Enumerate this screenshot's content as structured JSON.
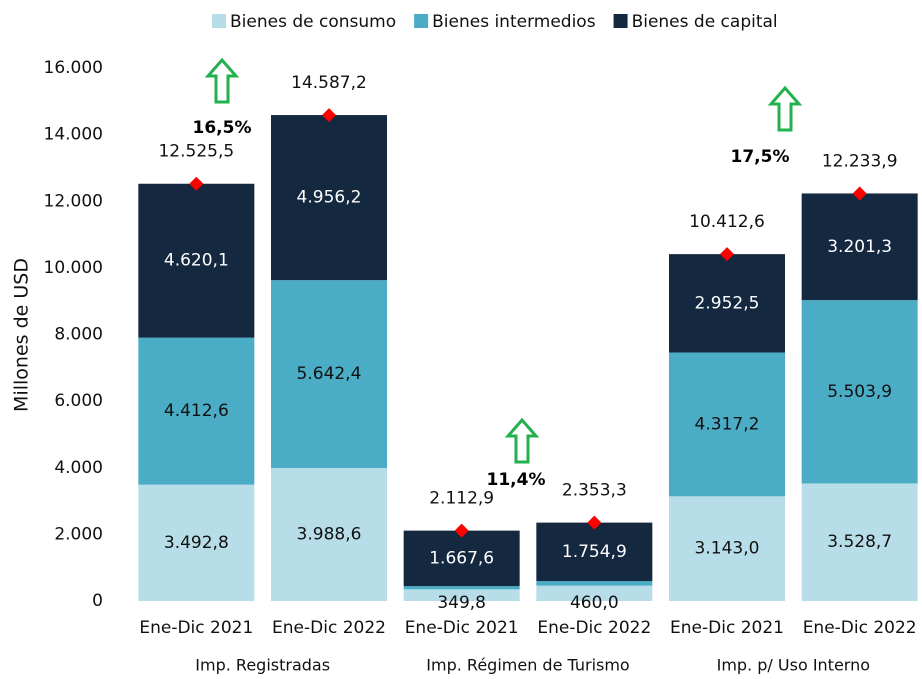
{
  "chart_data": {
    "type": "bar",
    "stacked": true,
    "ylabel": "Millones de USD",
    "categories": [
      "Ene-Dic 2021",
      "Ene-Dic 2022",
      "Ene-Dic 2021",
      "Ene-Dic 2022",
      "Ene-Dic 2021",
      "Ene-Dic 2022"
    ],
    "groups": [
      "Imp. Registradas",
      "Imp. Régimen de Turismo",
      "Imp. p/ Uso Interno"
    ],
    "series": [
      {
        "name": "Bienes de consumo",
        "color": "#b7dde8",
        "values": [
          3492.8,
          3988.6,
          349.8,
          460.0,
          3143.0,
          3528.7
        ],
        "value_labels": [
          "3.492,8",
          "3.988,6",
          "349,8",
          "460,0",
          "3.143,0",
          "3.528,7"
        ]
      },
      {
        "name": "Bienes intermedios",
        "color": "#4bacc6",
        "values": [
          4412.6,
          5642.4,
          95.5,
          138.4,
          4317.2,
          5503.9
        ],
        "value_labels": [
          "4.412,6",
          "5.642,4",
          null,
          null,
          "4.317,2",
          "5.503,9"
        ]
      },
      {
        "name": "Bienes de capital",
        "color": "#142840",
        "values": [
          4620.1,
          4956.2,
          1667.6,
          1754.9,
          2952.5,
          3201.3
        ],
        "value_labels": [
          "4.620,1",
          "4.956,2",
          "1.667,6",
          "1.754,9",
          "2.952,5",
          "3.201,3"
        ]
      }
    ],
    "totals": {
      "color": "#ff0000",
      "values": [
        12525.5,
        14587.2,
        2112.9,
        2353.3,
        10412.6,
        12233.9
      ],
      "value_labels": [
        "12.525,5",
        "14.587,2",
        "2.112,9",
        "2.353,3",
        "10.412,6",
        "12.233,9"
      ]
    },
    "annotations": [
      {
        "text": "16,5%"
      },
      {
        "text": "11,4%"
      },
      {
        "text": "17,5%"
      }
    ],
    "ylim": [
      0,
      16000
    ],
    "yticks": [
      0,
      {
        "value": 2000,
        "label": "2.000"
      },
      {
        "value": 4000,
        "label": "4.000"
      },
      {
        "value": 6000,
        "label": "6.000"
      },
      {
        "value": 8000,
        "label": "8.000"
      },
      {
        "value": 10000,
        "label": "10.000"
      },
      {
        "value": 12000,
        "label": "12.000"
      },
      {
        "value": 14000,
        "label": "14.000"
      },
      {
        "value": 16000,
        "label": "16.000"
      }
    ],
    "grid": false,
    "legend": "top"
  }
}
